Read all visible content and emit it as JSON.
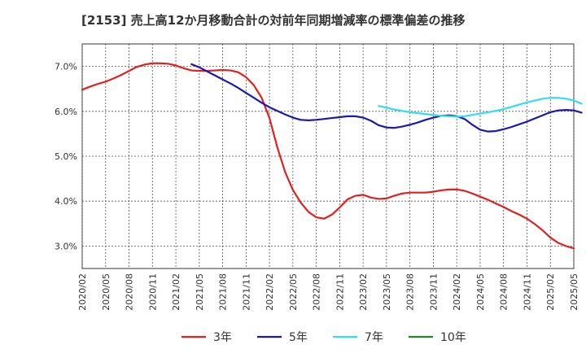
{
  "chart_data": {
    "type": "line",
    "title": "[2153]  売上高12か月移動合計の対前年同期増減率の標準偏差の推移",
    "xlabel": "",
    "ylabel": "",
    "ylim": [
      2.5,
      7.5
    ],
    "x_range": [
      "2020-02",
      "2025-05"
    ],
    "yticks": [
      3.0,
      4.0,
      5.0,
      6.0,
      7.0
    ],
    "ytick_labels": [
      "3.0%",
      "4.0%",
      "5.0%",
      "6.0%",
      "7.0%"
    ],
    "xtick_labels": [
      "2020/02",
      "2020/05",
      "2020/08",
      "2020/11",
      "2021/02",
      "2021/05",
      "2021/08",
      "2021/11",
      "2022/02",
      "2022/05",
      "2022/08",
      "2022/11",
      "2023/02",
      "2023/05",
      "2023/08",
      "2023/11",
      "2024/02",
      "2024/05",
      "2024/08",
      "2024/11",
      "2025/02",
      "2025/05"
    ],
    "grid": true,
    "legend": {
      "position": "bottom",
      "entries": [
        "3年",
        "5年",
        "7年",
        "10年"
      ]
    },
    "series": [
      {
        "name": "3年",
        "color": "#dd2222",
        "start": "2020-02",
        "values": [
          6.48,
          6.55,
          6.61,
          6.66,
          6.73,
          6.81,
          6.9,
          6.99,
          7.04,
          7.07,
          7.07,
          7.06,
          7.02,
          6.96,
          6.91,
          6.9,
          6.9,
          6.91,
          6.92,
          6.91,
          6.87,
          6.76,
          6.58,
          6.3,
          5.85,
          5.2,
          4.65,
          4.25,
          3.97,
          3.76,
          3.64,
          3.61,
          3.7,
          3.86,
          4.04,
          4.12,
          4.14,
          4.08,
          4.05,
          4.06,
          4.12,
          4.17,
          4.19,
          4.19,
          4.19,
          4.21,
          4.24,
          4.26,
          4.26,
          4.23,
          4.17,
          4.1,
          4.03,
          3.95,
          3.87,
          3.78,
          3.7,
          3.61,
          3.49,
          3.35,
          3.19,
          3.07,
          3.0,
          2.95
        ]
      },
      {
        "name": "5年",
        "color": "#1a1aaa",
        "start": "2021-04",
        "values": [
          7.05,
          6.98,
          6.89,
          6.8,
          6.71,
          6.62,
          6.52,
          6.41,
          6.3,
          6.19,
          6.09,
          6.01,
          5.93,
          5.86,
          5.81,
          5.8,
          5.81,
          5.83,
          5.85,
          5.87,
          5.89,
          5.89,
          5.86,
          5.79,
          5.69,
          5.64,
          5.63,
          5.66,
          5.7,
          5.75,
          5.81,
          5.86,
          5.9,
          5.91,
          5.89,
          5.83,
          5.7,
          5.59,
          5.55,
          5.56,
          5.6,
          5.65,
          5.71,
          5.77,
          5.84,
          5.91,
          5.98,
          6.02,
          6.03,
          6.02,
          5.97
        ]
      },
      {
        "name": "7年",
        "color": "#33ddee",
        "start": "2023-04",
        "values": [
          6.12,
          6.08,
          6.04,
          6.01,
          5.98,
          5.96,
          5.94,
          5.92,
          5.9,
          5.89,
          5.88,
          5.89,
          5.92,
          5.95,
          5.98,
          6.01,
          6.05,
          6.1,
          6.15,
          6.2,
          6.24,
          6.28,
          6.3,
          6.3,
          6.28,
          6.24,
          6.17
        ]
      },
      {
        "name": "10年",
        "color": "#228822",
        "start": "2025-05",
        "values": []
      }
    ]
  }
}
